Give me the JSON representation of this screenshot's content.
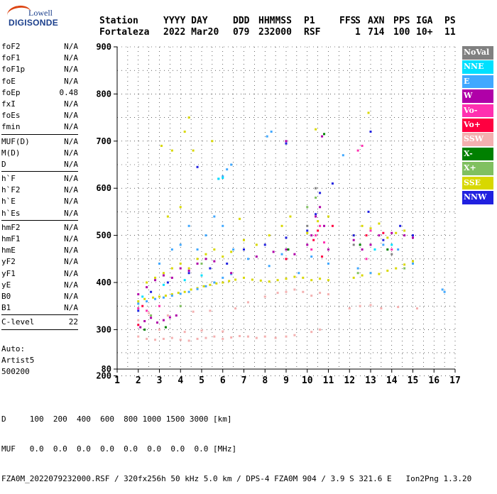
{
  "logo": {
    "line1": "Lowell",
    "line2": "DIGISONDE"
  },
  "header": {
    "labels": [
      "Station",
      "YYYY DAY",
      "DDD",
      "HHMMSS",
      "P1",
      "FFS",
      "S",
      "AXN",
      "PPS",
      "IGA",
      "PS"
    ],
    "values": [
      "Fortaleza",
      "2022 Mar20",
      "079",
      "232000",
      "RSF",
      "",
      "1",
      "714",
      "100",
      "10+",
      "11"
    ]
  },
  "params": [
    [
      {
        "name": "foF2",
        "value": "N/A"
      },
      {
        "name": "foF1",
        "value": "N/A"
      },
      {
        "name": "foF1p",
        "value": "N/A"
      },
      {
        "name": "foE",
        "value": "N/A"
      },
      {
        "name": "foEp",
        "value": "0.48"
      },
      {
        "name": "fxI",
        "value": "N/A"
      },
      {
        "name": "foEs",
        "value": "N/A"
      },
      {
        "name": "fmin",
        "value": "N/A"
      }
    ],
    [
      {
        "name": "MUF(D)",
        "value": "N/A"
      },
      {
        "name": "M(D)",
        "value": "N/A"
      },
      {
        "name": "D",
        "value": "N/A"
      }
    ],
    [
      {
        "name": "h`F",
        "value": "N/A"
      },
      {
        "name": "h`F2",
        "value": "N/A"
      },
      {
        "name": "h`E",
        "value": "N/A"
      },
      {
        "name": "h`Es",
        "value": "N/A"
      }
    ],
    [
      {
        "name": "hmF2",
        "value": "N/A"
      },
      {
        "name": "hmF1",
        "value": "N/A"
      },
      {
        "name": "hmE",
        "value": "N/A"
      },
      {
        "name": "yF2",
        "value": "N/A"
      },
      {
        "name": "yF1",
        "value": "N/A"
      },
      {
        "name": "yE",
        "value": "N/A"
      },
      {
        "name": "B0",
        "value": "N/A"
      },
      {
        "name": "B1",
        "value": "N/A"
      }
    ],
    [
      {
        "name": "C-level",
        "value": "22"
      }
    ]
  ],
  "auto": [
    "Auto:",
    "Artist5",
    "500200"
  ],
  "legend": [
    {
      "label": "NoVal",
      "color": "#808080"
    },
    {
      "label": "NNE",
      "color": "#00e0ff"
    },
    {
      "label": "E",
      "color": "#40a8ff"
    },
    {
      "label": "W",
      "color": "#b000a8"
    },
    {
      "label": "Vo-",
      "color": "#ff30b0"
    },
    {
      "label": "Vo+",
      "color": "#ff0040"
    },
    {
      "label": "SSW",
      "color": "#f4b0b0"
    },
    {
      "label": "X-",
      "color": "#008000"
    },
    {
      "label": "X+",
      "color": "#80c060"
    },
    {
      "label": "SSE",
      "color": "#d8d800"
    },
    {
      "label": "NNW",
      "color": "#2020e0"
    }
  ],
  "footer": {
    "line1": "D     100  200  400  600  800 1000 1500 3000 [km]",
    "line2": "MUF   0.0  0.0  0.0  0.0  0.0  0.0  0.0  0.0 [MHz]",
    "line3": "FZA0M_2022079232000.RSF / 320fx256h 50 kHz 5.0 km / DPS-4 FZA0M 904 / 3.9 S 321.6 E   Ion2Png 1.3.20"
  },
  "chart_data": {
    "type": "scatter",
    "xlim": [
      1,
      17
    ],
    "ylim": [
      80,
      900
    ],
    "xticks": [
      "1",
      "2",
      "3",
      "4",
      "5",
      "6",
      "7",
      "8",
      "9",
      "10",
      "11",
      "12",
      "13",
      "14",
      "15",
      "16",
      "17"
    ],
    "yticks": [
      "80",
      "200",
      "300",
      "400",
      "500",
      "600",
      "700",
      "800",
      "900"
    ],
    "grid": true,
    "series": [
      {
        "name": "SSW",
        "color": "#f4b0b0",
        "points": [
          [
            2.0,
            285
          ],
          [
            2.4,
            280
          ],
          [
            2.8,
            278
          ],
          [
            3.2,
            280
          ],
          [
            3.6,
            282
          ],
          [
            4.0,
            278
          ],
          [
            4.4,
            276
          ],
          [
            4.8,
            280
          ],
          [
            5.2,
            282
          ],
          [
            5.6,
            285
          ],
          [
            6.0,
            280
          ],
          [
            6.4,
            283
          ],
          [
            6.8,
            286
          ],
          [
            7.2,
            285
          ],
          [
            7.6,
            282
          ],
          [
            8.0,
            285
          ],
          [
            8.5,
            282
          ],
          [
            9.0,
            285
          ],
          [
            9.4,
            288
          ],
          [
            10.2,
            295
          ],
          [
            10.6,
            300
          ],
          [
            3.0,
            300
          ],
          [
            4.2,
            295
          ],
          [
            5.0,
            298
          ],
          [
            6.0,
            296
          ],
          [
            2.0,
            320
          ],
          [
            2.5,
            335
          ],
          [
            3.4,
            330
          ],
          [
            4.6,
            338
          ],
          [
            5.4,
            340
          ],
          [
            6.6,
            345
          ],
          [
            7.2,
            358
          ],
          [
            8.0,
            370
          ],
          [
            8.6,
            378
          ],
          [
            9.0,
            380
          ],
          [
            9.4,
            385
          ],
          [
            9.8,
            380
          ],
          [
            10.2,
            372
          ],
          [
            10.6,
            378
          ],
          [
            11.0,
            375
          ],
          [
            12.0,
            345
          ],
          [
            12.5,
            350
          ],
          [
            13.0,
            352
          ],
          [
            13.5,
            345
          ],
          [
            14.3,
            348
          ],
          [
            15.2,
            345
          ]
        ]
      },
      {
        "name": "SSE",
        "color": "#d8d800",
        "points": [
          [
            2.0,
            360
          ],
          [
            2.3,
            365
          ],
          [
            2.7,
            368
          ],
          [
            3.0,
            370
          ],
          [
            3.3,
            372
          ],
          [
            3.6,
            375
          ],
          [
            3.9,
            378
          ],
          [
            4.2,
            380
          ],
          [
            4.5,
            385
          ],
          [
            4.8,
            388
          ],
          [
            5.1,
            392
          ],
          [
            5.4,
            395
          ],
          [
            5.7,
            398
          ],
          [
            6.0,
            400
          ],
          [
            6.3,
            403
          ],
          [
            6.6,
            406
          ],
          [
            7.0,
            410
          ],
          [
            7.4,
            406
          ],
          [
            7.8,
            404
          ],
          [
            8.2,
            402
          ],
          [
            8.6,
            405
          ],
          [
            9.0,
            408
          ],
          [
            9.4,
            412
          ],
          [
            9.8,
            410
          ],
          [
            10.2,
            405
          ],
          [
            10.6,
            408
          ],
          [
            11.0,
            405
          ],
          [
            12.2,
            410
          ],
          [
            12.6,
            415
          ],
          [
            13.0,
            420
          ],
          [
            13.4,
            418
          ],
          [
            13.8,
            425
          ],
          [
            14.2,
            430
          ],
          [
            14.6,
            438
          ],
          [
            15.0,
            445
          ],
          [
            2.4,
            400
          ],
          [
            2.8,
            410
          ],
          [
            3.2,
            420
          ],
          [
            3.6,
            430
          ],
          [
            4.0,
            440
          ],
          [
            4.4,
            430
          ],
          [
            4.8,
            450
          ],
          [
            5.2,
            460
          ],
          [
            5.6,
            470
          ],
          [
            6.0,
            455
          ],
          [
            6.4,
            465
          ],
          [
            7.0,
            490
          ],
          [
            7.6,
            480
          ],
          [
            8.2,
            500
          ],
          [
            8.8,
            520
          ],
          [
            9.2,
            540
          ],
          [
            10.0,
            505
          ],
          [
            10.5,
            530
          ],
          [
            11.0,
            540
          ],
          [
            12.2,
            500
          ],
          [
            12.6,
            520
          ],
          [
            13.0,
            515
          ],
          [
            13.4,
            525
          ],
          [
            13.8,
            495
          ],
          [
            14.2,
            505
          ],
          [
            14.6,
            510
          ],
          [
            3.1,
            690
          ],
          [
            3.6,
            680
          ],
          [
            4.2,
            720
          ],
          [
            4.4,
            750
          ],
          [
            4.6,
            680
          ],
          [
            5.5,
            700
          ],
          [
            3.4,
            540
          ],
          [
            4.0,
            560
          ],
          [
            6.8,
            535
          ],
          [
            10.4,
            725
          ],
          [
            12.9,
            760
          ]
        ]
      },
      {
        "name": "E",
        "color": "#40a8ff",
        "points": [
          [
            2.0,
            355
          ],
          [
            2.4,
            360
          ],
          [
            2.8,
            365
          ],
          [
            3.2,
            368
          ],
          [
            3.6,
            372
          ],
          [
            4.0,
            376
          ],
          [
            4.4,
            380
          ],
          [
            4.8,
            386
          ],
          [
            5.2,
            392
          ],
          [
            5.6,
            400
          ],
          [
            6.0,
            410
          ],
          [
            6.4,
            418
          ],
          [
            3.0,
            440
          ],
          [
            3.6,
            470
          ],
          [
            4.0,
            480
          ],
          [
            4.4,
            520
          ],
          [
            4.8,
            470
          ],
          [
            5.2,
            500
          ],
          [
            5.6,
            540
          ],
          [
            6.0,
            520
          ],
          [
            6.5,
            470
          ],
          [
            7.2,
            450
          ],
          [
            8.2,
            435
          ],
          [
            8.8,
            460
          ],
          [
            9.6,
            420
          ],
          [
            10.2,
            455
          ],
          [
            11.0,
            440
          ],
          [
            12.4,
            430
          ],
          [
            13.0,
            420
          ],
          [
            13.6,
            480
          ],
          [
            14.3,
            470
          ],
          [
            15.0,
            440
          ],
          [
            16.4,
            385
          ],
          [
            16.5,
            380
          ],
          [
            5.8,
            620
          ],
          [
            6.0,
            625
          ],
          [
            6.2,
            640
          ],
          [
            6.4,
            650
          ],
          [
            8.1,
            710
          ],
          [
            8.3,
            720
          ],
          [
            11.7,
            670
          ]
        ]
      },
      {
        "name": "NNE",
        "color": "#00e0ff",
        "points": [
          [
            5.8,
            620
          ],
          [
            6.0,
            622
          ],
          [
            2.2,
            370
          ],
          [
            3.2,
            395
          ],
          [
            4.2,
            405
          ],
          [
            5.0,
            415
          ],
          [
            13.2,
            470
          ],
          [
            14.0,
            480
          ]
        ]
      },
      {
        "name": "W",
        "color": "#b000a8",
        "points": [
          [
            2.1,
            305
          ],
          [
            2.3,
            318
          ],
          [
            2.6,
            325
          ],
          [
            2.9,
            315
          ],
          [
            3.2,
            320
          ],
          [
            3.5,
            326
          ],
          [
            3.8,
            330
          ],
          [
            2.0,
            375
          ],
          [
            2.4,
            390
          ],
          [
            2.8,
            405
          ],
          [
            3.2,
            415
          ],
          [
            3.6,
            410
          ],
          [
            4.0,
            430
          ],
          [
            4.4,
            425
          ],
          [
            4.8,
            440
          ],
          [
            5.2,
            450
          ],
          [
            5.6,
            445
          ],
          [
            6.4,
            420
          ],
          [
            7.6,
            455
          ],
          [
            8.4,
            465
          ],
          [
            9.0,
            470
          ],
          [
            9.4,
            460
          ],
          [
            10.0,
            480
          ],
          [
            10.2,
            500
          ],
          [
            10.4,
            540
          ],
          [
            10.6,
            560
          ],
          [
            10.8,
            520
          ],
          [
            11.0,
            470
          ],
          [
            12.2,
            490
          ],
          [
            12.6,
            470
          ],
          [
            13.0,
            480
          ],
          [
            13.4,
            500
          ],
          [
            14.0,
            505
          ],
          [
            14.6,
            500
          ],
          [
            15.0,
            495
          ],
          [
            9.0,
            700
          ],
          [
            10.7,
            710
          ]
        ]
      },
      {
        "name": "Vo-",
        "color": "#ff30b0",
        "points": [
          [
            2.0,
            345
          ],
          [
            2.4,
            340
          ],
          [
            3.0,
            350
          ],
          [
            10.2,
            470
          ],
          [
            10.4,
            500
          ],
          [
            10.6,
            520
          ],
          [
            10.8,
            485
          ],
          [
            12.8,
            450
          ],
          [
            13.0,
            510
          ],
          [
            14.0,
            470
          ],
          [
            12.4,
            680
          ],
          [
            12.6,
            690
          ]
        ]
      },
      {
        "name": "Vo+",
        "color": "#ff0040",
        "points": [
          [
            2.0,
            310
          ],
          [
            2.2,
            350
          ],
          [
            9.0,
            450
          ],
          [
            10.3,
            490
          ],
          [
            10.5,
            510
          ],
          [
            10.7,
            455
          ],
          [
            11.2,
            520
          ],
          [
            12.8,
            500
          ],
          [
            13.6,
            505
          ]
        ]
      },
      {
        "name": "X-",
        "color": "#008000",
        "points": [
          [
            2.3,
            300
          ],
          [
            3.3,
            305
          ],
          [
            9.1,
            470
          ],
          [
            10.8,
            715
          ],
          [
            12.5,
            480
          ],
          [
            13.8,
            470
          ]
        ]
      },
      {
        "name": "X+",
        "color": "#80c060",
        "points": [
          [
            2.6,
            330
          ],
          [
            4.0,
            350
          ],
          [
            5.0,
            440
          ],
          [
            10.0,
            560
          ],
          [
            10.4,
            580
          ],
          [
            12.4,
            420
          ],
          [
            14.6,
            430
          ]
        ]
      },
      {
        "name": "NNW",
        "color": "#2020e0",
        "points": [
          [
            2.0,
            340
          ],
          [
            2.6,
            380
          ],
          [
            3.4,
            400
          ],
          [
            4.4,
            420
          ],
          [
            5.4,
            430
          ],
          [
            6.2,
            440
          ],
          [
            7.0,
            470
          ],
          [
            8.0,
            480
          ],
          [
            9.0,
            495
          ],
          [
            10.0,
            510
          ],
          [
            10.4,
            545
          ],
          [
            10.6,
            590
          ],
          [
            11.2,
            610
          ],
          [
            12.2,
            500
          ],
          [
            12.9,
            550
          ],
          [
            13.0,
            720
          ],
          [
            13.6,
            490
          ],
          [
            14.4,
            520
          ],
          [
            15.0,
            500
          ],
          [
            9.0,
            695
          ],
          [
            4.8,
            645
          ]
        ]
      },
      {
        "name": "NoVal",
        "color": "#808080",
        "points": [
          [
            10.0,
            520
          ],
          [
            10.4,
            600
          ],
          [
            12.2,
            480
          ],
          [
            14.0,
            460
          ]
        ]
      }
    ]
  }
}
